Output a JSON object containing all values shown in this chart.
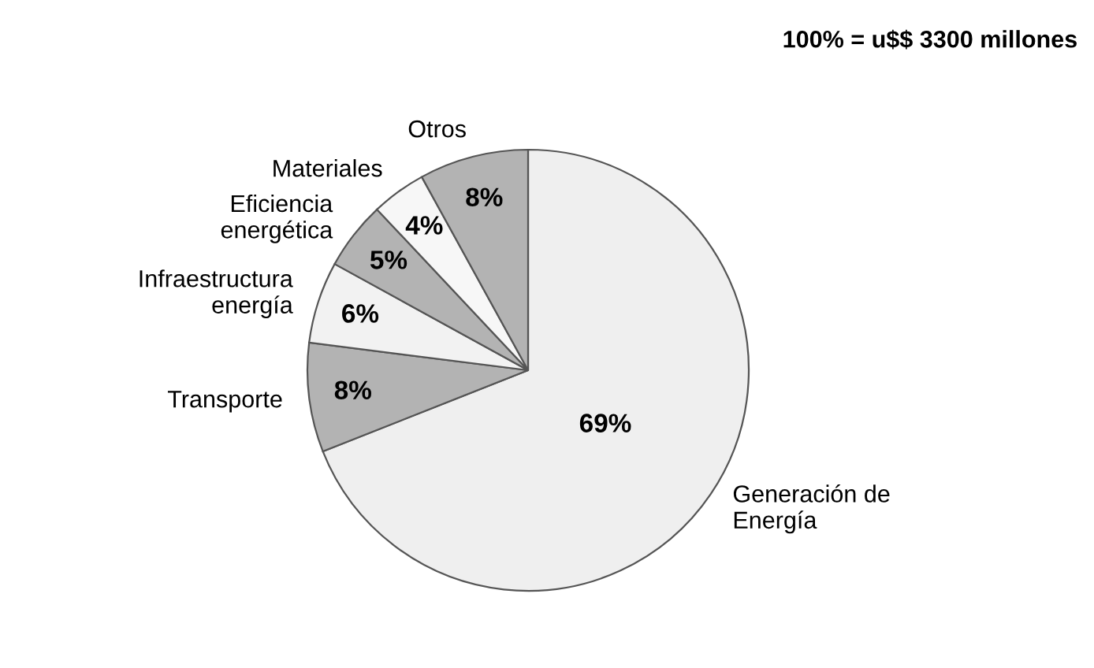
{
  "chart_data": {
    "type": "pie",
    "title": "100% = u$$ 3300 millones",
    "categories": [
      "Generación de\nEnergía",
      "Transporte",
      "Infraestructura\nenergía",
      "Eficiencia\nenergética",
      "Materiales",
      "Otros"
    ],
    "values": [
      69,
      8,
      6,
      5,
      4,
      8
    ],
    "value_labels": [
      "69%",
      "8%",
      "6%",
      "5%",
      "4%",
      "8%"
    ],
    "colors": [
      "#efefef",
      "#b3b3b3",
      "#f2f2f2",
      "#b3b3b3",
      "#f7f7f7",
      "#b3b3b3"
    ],
    "legend": false
  }
}
